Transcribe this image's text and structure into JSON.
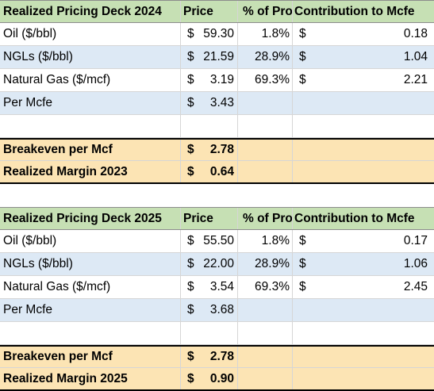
{
  "tables": [
    {
      "header": {
        "title": "Realized Pricing Deck 2024",
        "price": "Price",
        "pct": "% of Pro",
        "contribution": "Contribution to Mcfe"
      },
      "rows": [
        {
          "label": "Oil ($/bbl)",
          "cur": "$",
          "price": "59.30",
          "pct": "1.8%",
          "cur2": "$",
          "contribution": "0.18",
          "shade": "white"
        },
        {
          "label": "NGLs ($/bbl)",
          "cur": "$",
          "price": "21.59",
          "pct": "28.9%",
          "cur2": "$",
          "contribution": "1.04",
          "shade": "shade"
        },
        {
          "label": "Natural Gas ($/mcf)",
          "cur": "$",
          "price": "3.19",
          "pct": "69.3%",
          "cur2": "$",
          "contribution": "2.21",
          "shade": "white"
        },
        {
          "label": "Per Mcfe",
          "cur": "$",
          "price": "3.43",
          "pct": "",
          "cur2": "",
          "contribution": "",
          "shade": "shade"
        },
        {
          "label": "",
          "cur": "",
          "price": "",
          "pct": "",
          "cur2": "",
          "contribution": "",
          "shade": "white"
        }
      ],
      "summary": [
        {
          "label": "Breakeven per Mcf",
          "cur": "$",
          "value": "2.78"
        },
        {
          "label": "Realized Margin 2023",
          "cur": "$",
          "value": "0.64"
        }
      ]
    },
    {
      "header": {
        "title": "Realized Pricing Deck 2025",
        "price": "Price",
        "pct": "% of Pro",
        "contribution": "Contribution to Mcfe"
      },
      "rows": [
        {
          "label": "Oil ($/bbl)",
          "cur": "$",
          "price": "55.50",
          "pct": "1.8%",
          "cur2": "$",
          "contribution": "0.17",
          "shade": "white"
        },
        {
          "label": "NGLs ($/bbl)",
          "cur": "$",
          "price": "22.00",
          "pct": "28.9%",
          "cur2": "$",
          "contribution": "1.06",
          "shade": "shade"
        },
        {
          "label": "Natural Gas ($/mcf)",
          "cur": "$",
          "price": "3.54",
          "pct": "69.3%",
          "cur2": "$",
          "contribution": "2.45",
          "shade": "white"
        },
        {
          "label": "Per Mcfe",
          "cur": "$",
          "price": "3.68",
          "pct": "",
          "cur2": "",
          "contribution": "",
          "shade": "shade"
        },
        {
          "label": "",
          "cur": "",
          "price": "",
          "pct": "",
          "cur2": "",
          "contribution": "",
          "shade": "white"
        }
      ],
      "summary": [
        {
          "label": "Breakeven per Mcf",
          "cur": "$",
          "value": "2.78"
        },
        {
          "label": "Realized Margin 2025",
          "cur": "$",
          "value": "0.90"
        }
      ]
    }
  ]
}
